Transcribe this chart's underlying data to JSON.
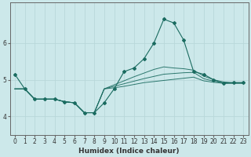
{
  "xlabel": "Humidex (Indice chaleur)",
  "background_color": "#cce8ea",
  "line_color": "#1a6b60",
  "grid_color": "#b8d8da",
  "xlim": [
    -0.5,
    23.5
  ],
  "ylim": [
    3.5,
    7.1
  ],
  "yticks": [
    4,
    5,
    6
  ],
  "xticks": [
    0,
    1,
    2,
    3,
    4,
    5,
    6,
    7,
    8,
    9,
    10,
    11,
    12,
    13,
    14,
    15,
    16,
    17,
    18,
    19,
    20,
    21,
    22,
    23
  ],
  "main_x": [
    0,
    1,
    2,
    3,
    4,
    5,
    6,
    7,
    8,
    9,
    10,
    11,
    12,
    13,
    14,
    15,
    16,
    17,
    18,
    19,
    20,
    21,
    22,
    23
  ],
  "main_y": [
    5.15,
    4.75,
    4.47,
    4.47,
    4.47,
    4.4,
    4.37,
    4.1,
    4.1,
    4.37,
    4.75,
    5.22,
    5.32,
    5.57,
    6.0,
    6.65,
    6.55,
    6.08,
    5.22,
    5.15,
    5.0,
    4.9,
    4.92,
    4.92
  ],
  "band_lines": [
    [
      4.75,
      4.75,
      4.47,
      4.47,
      4.47,
      4.4,
      4.37,
      4.1,
      4.1,
      4.75,
      4.78,
      4.82,
      4.87,
      4.92,
      4.95,
      4.98,
      5.01,
      5.04,
      5.07,
      4.97,
      4.93,
      4.9,
      4.9,
      4.9
    ],
    [
      4.75,
      4.75,
      4.47,
      4.47,
      4.47,
      4.4,
      4.37,
      4.1,
      4.1,
      4.75,
      4.82,
      4.89,
      4.96,
      5.03,
      5.09,
      5.15,
      5.17,
      5.19,
      5.2,
      5.03,
      4.96,
      4.92,
      4.91,
      4.91
    ],
    [
      4.75,
      4.75,
      4.47,
      4.47,
      4.47,
      4.4,
      4.37,
      4.1,
      4.1,
      4.75,
      4.86,
      4.97,
      5.08,
      5.18,
      5.28,
      5.35,
      5.32,
      5.3,
      5.26,
      5.1,
      5.0,
      4.94,
      4.92,
      4.92
    ]
  ],
  "tick_fontsize": 5.5,
  "xlabel_fontsize": 6.5,
  "marker": "D",
  "markersize": 2.0
}
